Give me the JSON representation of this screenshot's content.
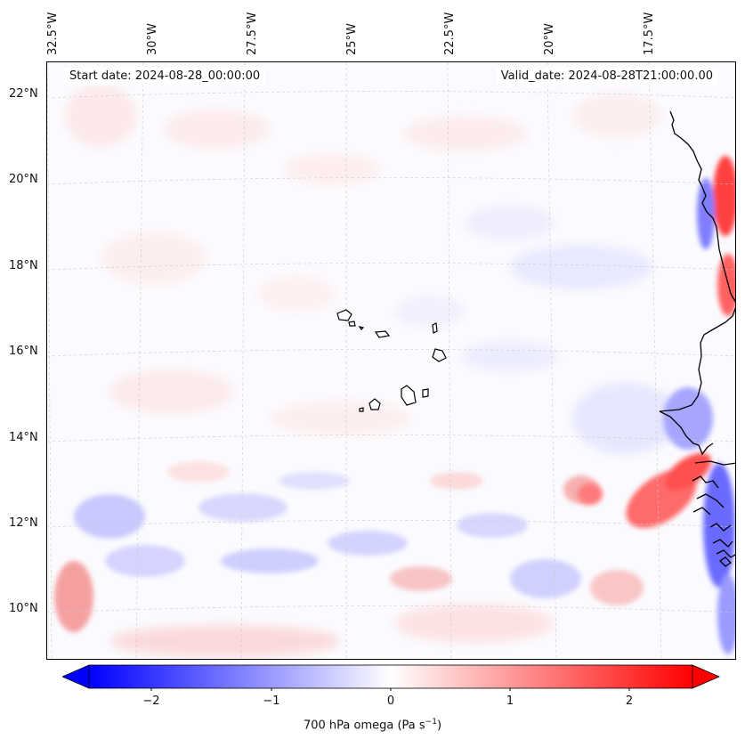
{
  "map": {
    "start_date": "Start date: 2024-08-28_00:00:00",
    "valid_date": "Valid_date: 2024-08-28T21:00:00.00",
    "longitude_labels": [
      "32.5°W",
      "30°W",
      "27.5°W",
      "25°W",
      "22.5°W",
      "20°W",
      "17.5°W"
    ],
    "latitude_labels": [
      "22°N",
      "20°N",
      "18°N",
      "16°N",
      "14°N",
      "12°N",
      "10°N"
    ],
    "field": "700 hPa omega",
    "colors": {
      "negative": "#0000ff",
      "zero": "#ffffff",
      "positive": "#ff0000",
      "coast": "#000000"
    }
  },
  "colorbar": {
    "label_main": "700 hPa omega (Pa s",
    "label_sup": "−1",
    "label_end": ")",
    "ticks": [
      "−2",
      "−1",
      "0",
      "1",
      "2"
    ],
    "range": [
      -2.75,
      2.75
    ],
    "tick_values": [
      -2,
      -1,
      0,
      1,
      2
    ]
  }
}
